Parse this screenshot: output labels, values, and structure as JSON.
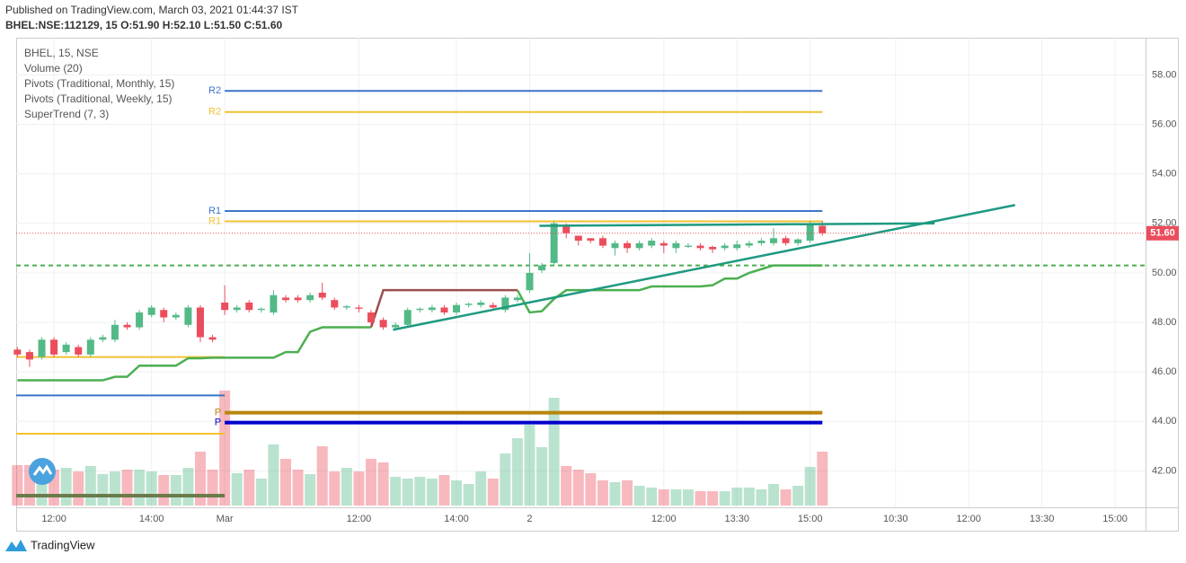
{
  "header": {
    "published": "Published on TradingView.com, March 03, 2021 01:44:37 IST",
    "symbol": "BHEL:NSE:112129, 15 O:51.90 H:52.10 L:51.50 C:51.60"
  },
  "footer": {
    "brand": "TradingView"
  },
  "chart_data": {
    "type": "candlestick",
    "legend": [
      "BHEL, 15, NSE",
      "Volume (20)",
      "Pivots (Traditional, Monthly, 15)",
      "Pivots (Traditional, Weekly, 15)",
      "SuperTrend (7, 3)"
    ],
    "open": [
      46.9,
      46.8,
      46.6,
      47.3,
      46.8,
      47.0,
      46.7,
      47.3,
      47.3,
      47.9,
      47.8,
      48.3,
      48.5,
      48.2,
      47.9,
      48.6,
      47.4,
      48.8,
      48.5,
      48.8,
      48.5,
      48.4,
      49.0,
      49.0,
      48.9,
      49.2,
      48.9,
      48.6,
      48.6,
      48.4,
      48.1,
      47.8,
      47.9,
      48.5,
      48.5,
      48.6,
      48.4,
      48.7,
      48.7,
      48.7,
      48.5,
      48.9,
      49.3,
      50.1,
      50.4,
      51.9,
      51.5,
      51.4,
      51.4,
      51.0,
      51.2,
      51.0,
      51.1,
      51.2,
      51.0,
      51.05,
      51.1,
      51.05,
      51.0,
      51.0,
      51.1,
      51.2,
      51.2,
      51.4,
      51.2,
      51.3,
      51.9
    ],
    "high": [
      47.0,
      46.9,
      47.4,
      47.4,
      47.2,
      47.1,
      47.4,
      47.5,
      48.1,
      48.0,
      48.5,
      48.7,
      48.6,
      48.4,
      48.7,
      48.7,
      47.5,
      49.5,
      48.7,
      48.9,
      48.6,
      49.3,
      49.1,
      49.1,
      49.2,
      49.6,
      49.0,
      48.7,
      48.7,
      48.5,
      48.2,
      48.0,
      48.6,
      48.6,
      48.7,
      48.7,
      48.8,
      48.8,
      48.9,
      48.8,
      49.1,
      49.1,
      50.8,
      50.4,
      52.1,
      52.0,
      51.5,
      51.4,
      51.5,
      51.3,
      51.3,
      51.3,
      51.4,
      51.3,
      51.3,
      51.2,
      51.2,
      51.1,
      51.2,
      51.3,
      51.3,
      51.4,
      51.8,
      51.5,
      51.4,
      52.1,
      52.1
    ],
    "low": [
      46.6,
      46.2,
      46.5,
      46.6,
      46.7,
      46.6,
      46.6,
      47.2,
      47.2,
      47.7,
      47.7,
      48.2,
      48.0,
      48.1,
      47.8,
      47.2,
      47.2,
      48.3,
      48.4,
      48.4,
      48.4,
      48.3,
      48.8,
      48.8,
      48.8,
      48.9,
      48.5,
      48.5,
      48.4,
      47.9,
      47.7,
      47.7,
      47.8,
      48.4,
      48.4,
      48.3,
      48.3,
      48.6,
      48.6,
      48.5,
      48.4,
      48.8,
      49.2,
      50.0,
      50.3,
      51.4,
      51.1,
      51.2,
      51.0,
      50.7,
      50.8,
      50.9,
      51.0,
      50.8,
      50.8,
      51.0,
      50.9,
      50.8,
      50.9,
      50.9,
      51.0,
      51.1,
      51.1,
      51.1,
      51.1,
      51.2,
      51.5
    ],
    "close": [
      46.7,
      46.5,
      47.3,
      46.7,
      47.1,
      46.7,
      47.3,
      47.4,
      47.9,
      47.8,
      48.4,
      48.6,
      48.2,
      48.3,
      48.6,
      47.4,
      47.3,
      48.5,
      48.6,
      48.5,
      48.55,
      49.1,
      48.9,
      48.9,
      49.1,
      49.0,
      48.6,
      48.65,
      48.55,
      48.0,
      47.8,
      47.9,
      48.5,
      48.55,
      48.6,
      48.4,
      48.7,
      48.75,
      48.8,
      48.6,
      49.0,
      49.0,
      50.0,
      50.3,
      52.0,
      51.6,
      51.3,
      51.3,
      51.1,
      51.2,
      51.0,
      51.2,
      51.3,
      51.1,
      51.2,
      51.1,
      51.0,
      50.95,
      51.1,
      51.15,
      51.2,
      51.3,
      51.4,
      51.2,
      51.35,
      52.0,
      51.6
    ],
    "volume": [
      45,
      45,
      42,
      40,
      42,
      38,
      44,
      35,
      38,
      40,
      40,
      38,
      34,
      34,
      42,
      60,
      40,
      128,
      36,
      40,
      30,
      68,
      52,
      40,
      35,
      66,
      38,
      42,
      38,
      52,
      48,
      32,
      30,
      32,
      30,
      34,
      28,
      24,
      38,
      30,
      58,
      75,
      90,
      65,
      120,
      44,
      40,
      36,
      28,
      26,
      28,
      22,
      20,
      18,
      18,
      18,
      16,
      16,
      16,
      20,
      20,
      18,
      24,
      18,
      22,
      43,
      60
    ],
    "up_color": "#53b987",
    "down_color": "#eb4d5c",
    "supertrend_up": [
      45.66,
      45.66,
      45.66,
      45.66,
      45.66,
      45.66,
      45.66,
      45.66,
      45.8,
      45.8,
      46.25,
      46.25,
      46.25,
      46.25,
      46.55,
      46.55,
      46.57,
      46.57,
      46.57,
      46.57,
      46.57,
      46.57,
      46.8,
      46.8,
      47.62,
      47.8,
      47.8,
      47.8,
      47.8,
      47.8,
      null,
      null,
      null,
      null,
      null,
      null,
      null,
      null,
      null,
      null,
      null,
      49.3,
      48.4,
      48.45,
      48.95,
      49.3,
      49.3,
      49.3,
      49.3,
      49.3,
      49.3,
      49.3,
      49.45,
      49.45,
      49.45,
      49.45,
      49.45,
      49.5,
      49.77,
      49.77,
      50.0,
      50.15,
      50.3,
      50.3,
      50.3,
      50.3,
      50.3
    ],
    "supertrend_down": [
      null,
      null,
      null,
      null,
      null,
      null,
      null,
      null,
      null,
      null,
      null,
      null,
      null,
      null,
      null,
      null,
      null,
      null,
      null,
      null,
      null,
      null,
      null,
      null,
      null,
      null,
      null,
      null,
      null,
      47.8,
      49.3,
      49.3,
      49.3,
      49.3,
      49.3,
      49.3,
      49.3,
      49.3,
      49.3,
      49.3,
      49.3,
      49.3,
      null,
      null,
      null,
      null,
      null,
      null,
      null,
      null,
      null,
      null,
      null,
      null,
      null,
      null,
      null,
      null,
      null,
      null,
      null,
      null,
      null,
      null,
      null,
      null,
      null
    ],
    "supertrend_up_color": "#4caf50",
    "supertrend_down_color": "#9c4f4f",
    "supertrend_level": 50.3,
    "pivots": [
      {
        "label": "R2",
        "color": "#3d74c9",
        "value": 57.35,
        "start": 17,
        "end": 66
      },
      {
        "label": "R2",
        "color": "#f2c230",
        "value": 56.5,
        "start": 17,
        "end": 66
      },
      {
        "label": "R1",
        "color": "#3d74c9",
        "value": 52.5,
        "start": 17,
        "end": 66
      },
      {
        "label": "R1",
        "color": "#f2c230",
        "value": 52.08,
        "start": 17,
        "end": 66
      },
      {
        "label": "P",
        "color": "#b8860b",
        "value": 44.35,
        "start": 17,
        "end": 66,
        "thick": true
      },
      {
        "label": "P",
        "color": "#0000cc",
        "value": 43.95,
        "start": 17,
        "end": 66,
        "thick": true
      },
      {
        "color": "#f2c230",
        "value": 46.6,
        "start": -0.1,
        "end": 17
      },
      {
        "color": "#3d74c9",
        "value": 45.05,
        "start": -0.1,
        "end": 17
      },
      {
        "color": "#f2c230",
        "value": 43.5,
        "start": -0.1,
        "end": 17
      },
      {
        "color": "#6b7b4a",
        "value": 41.0,
        "start": -0.1,
        "end": 17,
        "thick": true
      }
    ],
    "trendlines": [
      {
        "color": "#1f9a80",
        "points": [
          [
            30.8,
            47.7
          ],
          [
            81.8,
            52.74
          ]
        ]
      },
      {
        "color": "#1f9a80",
        "points": [
          [
            42.8,
            51.9
          ],
          [
            75.2,
            52.0
          ]
        ]
      }
    ],
    "price_label": {
      "value": 51.6,
      "label": "51.60",
      "color": "#eb4d5c"
    },
    "xlim": [
      -0.1,
      92.5
    ],
    "xticks": [
      {
        "value": 3,
        "label": "12:00"
      },
      {
        "value": 11,
        "label": "14:00"
      },
      {
        "value": 17,
        "label": "Mar"
      },
      {
        "value": 28,
        "label": "12:00"
      },
      {
        "value": 36,
        "label": "14:00"
      },
      {
        "value": 42,
        "label": "2"
      },
      {
        "value": 53,
        "label": "12:00"
      },
      {
        "value": 59,
        "label": "13:30"
      },
      {
        "value": 65,
        "label": "15:00"
      },
      {
        "value": 72,
        "label": "10:30"
      },
      {
        "value": 78,
        "label": "12:00"
      },
      {
        "value": 84,
        "label": "13:30"
      },
      {
        "value": 90,
        "label": "15:00"
      }
    ],
    "ylim": [
      40.6,
      59.5
    ],
    "yticks": [
      {
        "value": 42,
        "label": "42.00"
      },
      {
        "value": 44,
        "label": "44.00"
      },
      {
        "value": 46,
        "label": "46.00"
      },
      {
        "value": 48,
        "label": "48.00"
      },
      {
        "value": 50,
        "label": "50.00"
      },
      {
        "value": 52,
        "label": "52.00"
      },
      {
        "value": 54,
        "label": "54.00"
      },
      {
        "value": 56,
        "label": "56.00"
      },
      {
        "value": 58,
        "label": "58.00"
      }
    ],
    "grid": true
  }
}
